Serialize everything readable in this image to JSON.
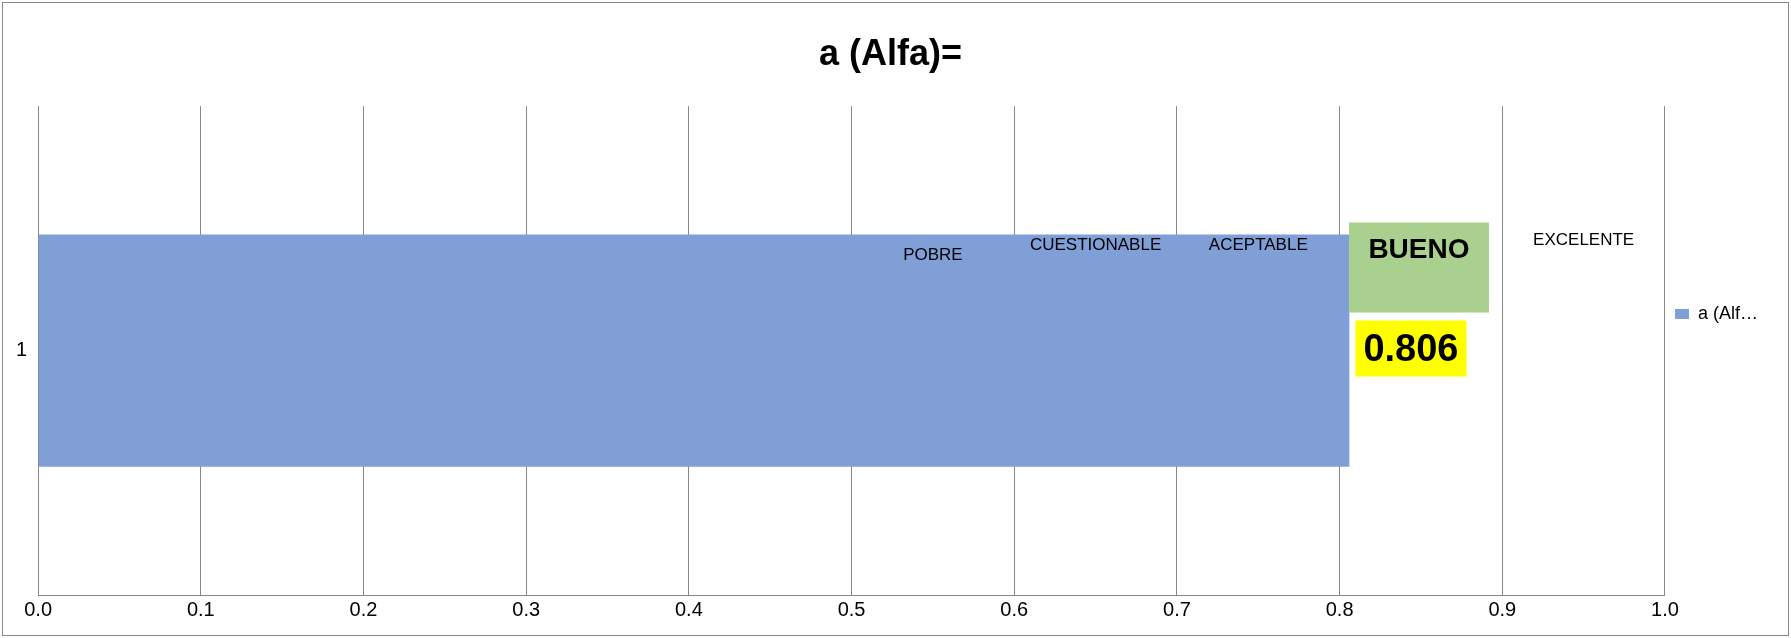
{
  "chart_data": {
    "type": "bar",
    "orientation": "horizontal",
    "title": "a (Alfa)=",
    "categories": [
      "1"
    ],
    "series": [
      {
        "name": "a (Alf…",
        "color": "#7f9fd6",
        "values": [
          0.806
        ]
      }
    ],
    "xlim": [
      0,
      1
    ],
    "xticks": [
      {
        "value": 0,
        "label": "0.0"
      },
      {
        "value": 0.1,
        "label": "0.1"
      },
      {
        "value": 0.2,
        "label": "0.2"
      },
      {
        "value": 0.3,
        "label": "0.3"
      },
      {
        "value": 0.4,
        "label": "0.4"
      },
      {
        "value": 0.5,
        "label": "0.5"
      },
      {
        "value": 0.6,
        "label": "0.6"
      },
      {
        "value": 0.7,
        "label": "0.7"
      },
      {
        "value": 0.8,
        "label": "0.8"
      },
      {
        "value": 0.9,
        "label": "0.9"
      },
      {
        "value": 1,
        "label": "1.0"
      }
    ],
    "grid": "x",
    "legend": "right",
    "data_labels": true,
    "annotations": [
      "POBRE",
      "CUESTIONABLE",
      "ACEPTABLE",
      "BUENO",
      "EXCELENTE"
    ]
  }
}
